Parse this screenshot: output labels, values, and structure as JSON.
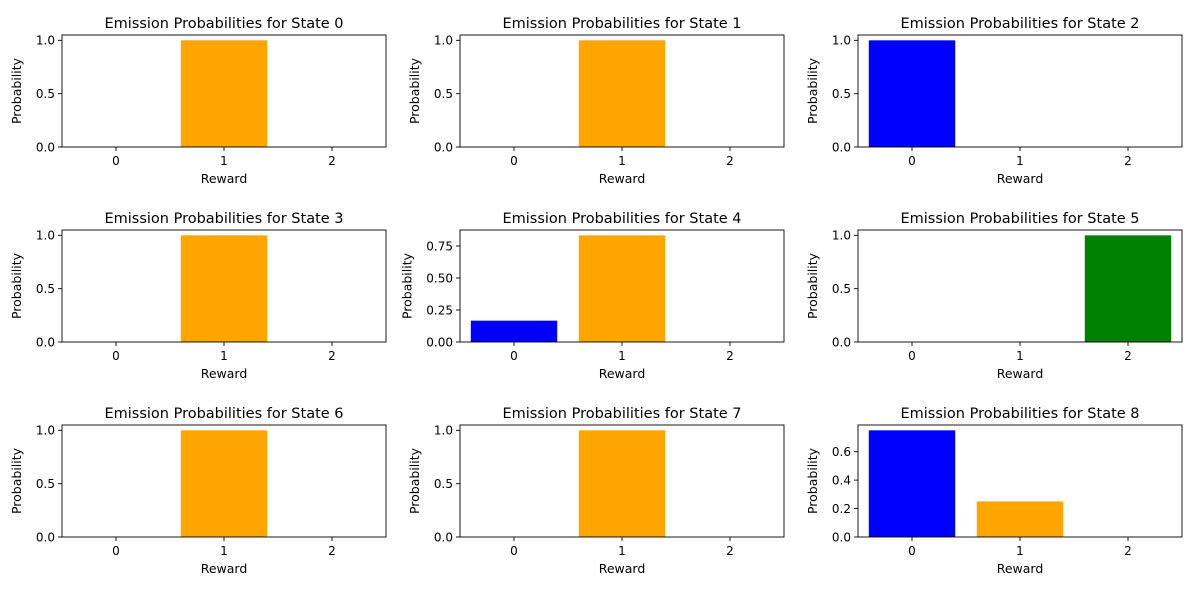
{
  "chart_data": [
    {
      "type": "bar",
      "title": "Emission Probabilities for State 0",
      "xlabel": "Reward",
      "ylabel": "Probability",
      "categories": [
        "0",
        "1",
        "2"
      ],
      "values": [
        0,
        1.0,
        0
      ],
      "colors": [
        "#0000ff",
        "#ffa500",
        "#008000"
      ],
      "ylim": [
        0,
        1.05
      ],
      "yticks": [
        0.0,
        0.5,
        1.0
      ],
      "ytick_labels": [
        "0.0",
        "0.5",
        "1.0"
      ],
      "grid": false
    },
    {
      "type": "bar",
      "title": "Emission Probabilities for State 1",
      "xlabel": "Reward",
      "ylabel": "Probability",
      "categories": [
        "0",
        "1",
        "2"
      ],
      "values": [
        0,
        1.0,
        0
      ],
      "colors": [
        "#0000ff",
        "#ffa500",
        "#008000"
      ],
      "ylim": [
        0,
        1.05
      ],
      "yticks": [
        0.0,
        0.5,
        1.0
      ],
      "ytick_labels": [
        "0.0",
        "0.5",
        "1.0"
      ],
      "grid": false
    },
    {
      "type": "bar",
      "title": "Emission Probabilities for State 2",
      "xlabel": "Reward",
      "ylabel": "Probability",
      "categories": [
        "0",
        "1",
        "2"
      ],
      "values": [
        1.0,
        0,
        0
      ],
      "colors": [
        "#0000ff",
        "#ffa500",
        "#008000"
      ],
      "ylim": [
        0,
        1.05
      ],
      "yticks": [
        0.0,
        0.5,
        1.0
      ],
      "ytick_labels": [
        "0.0",
        "0.5",
        "1.0"
      ],
      "grid": false
    },
    {
      "type": "bar",
      "title": "Emission Probabilities for State 3",
      "xlabel": "Reward",
      "ylabel": "Probability",
      "categories": [
        "0",
        "1",
        "2"
      ],
      "values": [
        0,
        1.0,
        0
      ],
      "colors": [
        "#0000ff",
        "#ffa500",
        "#008000"
      ],
      "ylim": [
        0,
        1.05
      ],
      "yticks": [
        0.0,
        0.5,
        1.0
      ],
      "ytick_labels": [
        "0.0",
        "0.5",
        "1.0"
      ],
      "grid": false
    },
    {
      "type": "bar",
      "title": "Emission Probabilities for State 4",
      "xlabel": "Reward",
      "ylabel": "Probability",
      "categories": [
        "0",
        "1",
        "2"
      ],
      "values": [
        0.1667,
        0.8333,
        0
      ],
      "colors": [
        "#0000ff",
        "#ffa500",
        "#008000"
      ],
      "ylim": [
        0,
        0.875
      ],
      "yticks": [
        0.0,
        0.25,
        0.5,
        0.75
      ],
      "ytick_labels": [
        "0.00",
        "0.25",
        "0.50",
        "0.75"
      ],
      "grid": false
    },
    {
      "type": "bar",
      "title": "Emission Probabilities for State 5",
      "xlabel": "Reward",
      "ylabel": "Probability",
      "categories": [
        "0",
        "1",
        "2"
      ],
      "values": [
        0,
        0,
        1.0
      ],
      "colors": [
        "#0000ff",
        "#ffa500",
        "#008000"
      ],
      "ylim": [
        0,
        1.05
      ],
      "yticks": [
        0.0,
        0.5,
        1.0
      ],
      "ytick_labels": [
        "0.0",
        "0.5",
        "1.0"
      ],
      "grid": false
    },
    {
      "type": "bar",
      "title": "Emission Probabilities for State 6",
      "xlabel": "Reward",
      "ylabel": "Probability",
      "categories": [
        "0",
        "1",
        "2"
      ],
      "values": [
        0,
        1.0,
        0
      ],
      "colors": [
        "#0000ff",
        "#ffa500",
        "#008000"
      ],
      "ylim": [
        0,
        1.05
      ],
      "yticks": [
        0.0,
        0.5,
        1.0
      ],
      "ytick_labels": [
        "0.0",
        "0.5",
        "1.0"
      ],
      "grid": false
    },
    {
      "type": "bar",
      "title": "Emission Probabilities for State 7",
      "xlabel": "Reward",
      "ylabel": "Probability",
      "categories": [
        "0",
        "1",
        "2"
      ],
      "values": [
        0,
        1.0,
        0
      ],
      "colors": [
        "#0000ff",
        "#ffa500",
        "#008000"
      ],
      "ylim": [
        0,
        1.05
      ],
      "yticks": [
        0.0,
        0.5,
        1.0
      ],
      "ytick_labels": [
        "0.0",
        "0.5",
        "1.0"
      ],
      "grid": false
    },
    {
      "type": "bar",
      "title": "Emission Probabilities for State 8",
      "xlabel": "Reward",
      "ylabel": "Probability",
      "categories": [
        "0",
        "1",
        "2"
      ],
      "values": [
        0.75,
        0.25,
        0
      ],
      "colors": [
        "#0000ff",
        "#ffa500",
        "#008000"
      ],
      "ylim": [
        0,
        0.7875
      ],
      "yticks": [
        0.0,
        0.2,
        0.4,
        0.6
      ],
      "ytick_labels": [
        "0.0",
        "0.2",
        "0.4",
        "0.6"
      ],
      "grid": false
    }
  ]
}
